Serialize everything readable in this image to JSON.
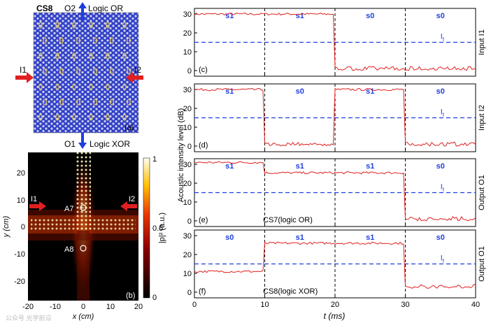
{
  "figure": {
    "panel_a": {
      "title": "CS8",
      "top_label": "O2",
      "top_logic": "Logic OR",
      "bottom_label": "O1",
      "bottom_logic": "Logic XOR",
      "left_input": "I1",
      "right_input": "I2",
      "tag": "(a)",
      "colors": {
        "bg": "#3340c8",
        "lattice": "#c9d2ee",
        "rod": "#e6c85a",
        "arrow_red": "#e02020",
        "arrow_blue": "#1f3fe0"
      }
    },
    "panel_b": {
      "tag": "(b)",
      "ylabel": "y (cm)",
      "xlabel": "x (cm)",
      "xticks": [
        "-20",
        "-10",
        "0",
        "10",
        "20"
      ],
      "yticks": [
        "20",
        "10",
        "0",
        "-10",
        "-20"
      ],
      "left_input": "I1",
      "right_input": "I2",
      "marker1": "A7",
      "marker2": "A8",
      "colorbar_label": "|p|² (a.u.)",
      "colorbar_ticks": [
        "1",
        "0.5",
        "0"
      ],
      "colormap": "hot"
    }
  },
  "watermark": "公众号 光学前沿",
  "chart_data": {
    "type": "line",
    "ylabel": "Acoustic intensity level (dB)",
    "xlabel": "t (ms)",
    "xlim": [
      0,
      40
    ],
    "ylim": [
      -3,
      33
    ],
    "xticks": [
      "0",
      "10",
      "20",
      "30",
      "40"
    ],
    "yticks": [
      "0",
      "10",
      "20",
      "30"
    ],
    "threshold_label": "I",
    "threshold_sub": "t",
    "threshold_value": 15,
    "segment_boundaries": [
      10,
      20,
      30
    ],
    "colors": {
      "line": "#e02020",
      "threshold": "#1f3fe0",
      "state_text": "#1f3fe0",
      "divider": "#000000"
    },
    "panels": [
      {
        "tag": "(c)",
        "side_label": "Input I1",
        "states": [
          "s1",
          "s1",
          "s0",
          "s0"
        ],
        "levels": [
          30,
          30,
          1,
          1
        ],
        "annotation": ""
      },
      {
        "tag": "(d)",
        "side_label": "Input I2",
        "states": [
          "s1",
          "s0",
          "s1",
          "s0"
        ],
        "levels": [
          30,
          1,
          30,
          1
        ],
        "annotation": ""
      },
      {
        "tag": "(e)",
        "side_label": "Output O1",
        "states": [
          "s1",
          "s1",
          "s1",
          "s0"
        ],
        "levels": [
          31,
          25.5,
          25.5,
          1
        ],
        "annotation": "CS7(logic OR)"
      },
      {
        "tag": "(f)",
        "side_label": "Output O1",
        "states": [
          "s0",
          "s1",
          "s1",
          "s0"
        ],
        "levels": [
          11,
          26,
          26,
          3
        ],
        "annotation": "CS8(logic XOR)"
      }
    ]
  }
}
